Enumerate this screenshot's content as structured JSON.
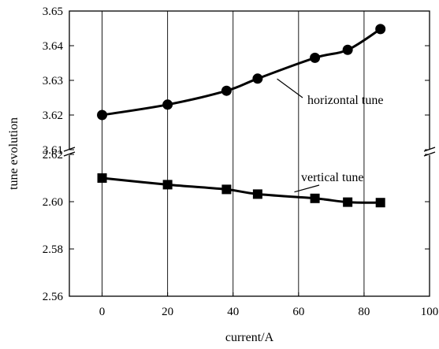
{
  "chart_data": {
    "type": "line",
    "title": "",
    "xlabel": "current/A",
    "ylabel": "tune evolution",
    "xlim": [
      -10,
      100
    ],
    "x_ticks": [
      0,
      20,
      40,
      60,
      80,
      100
    ],
    "y_axis_break": true,
    "upper_panel": {
      "ylim": [
        3.61,
        3.65
      ],
      "y_ticks": [
        "3.61",
        "3.62",
        "3.63",
        "3.64",
        "3.65"
      ]
    },
    "lower_panel": {
      "ylim": [
        2.56,
        2.62
      ],
      "y_ticks": [
        "2.56",
        "2.58",
        "2.60",
        "2.62"
      ]
    },
    "grid": "vertical",
    "series": [
      {
        "name": "horizontal tune",
        "marker": "circle",
        "panel": "upper",
        "x": [
          0,
          20,
          38,
          47.5,
          65,
          75,
          85
        ],
        "y": [
          3.62,
          3.623,
          3.627,
          3.6305,
          3.6365,
          3.6388,
          3.6448
        ]
      },
      {
        "name": "vertical tune",
        "marker": "square",
        "panel": "lower",
        "x": [
          0,
          20,
          38,
          47.5,
          65,
          75,
          85
        ],
        "y": [
          2.61,
          2.6072,
          2.6052,
          2.6032,
          2.6014,
          2.5998,
          2.5996
        ]
      }
    ],
    "annotations": [
      "horizontal tune",
      "vertical tune"
    ]
  }
}
